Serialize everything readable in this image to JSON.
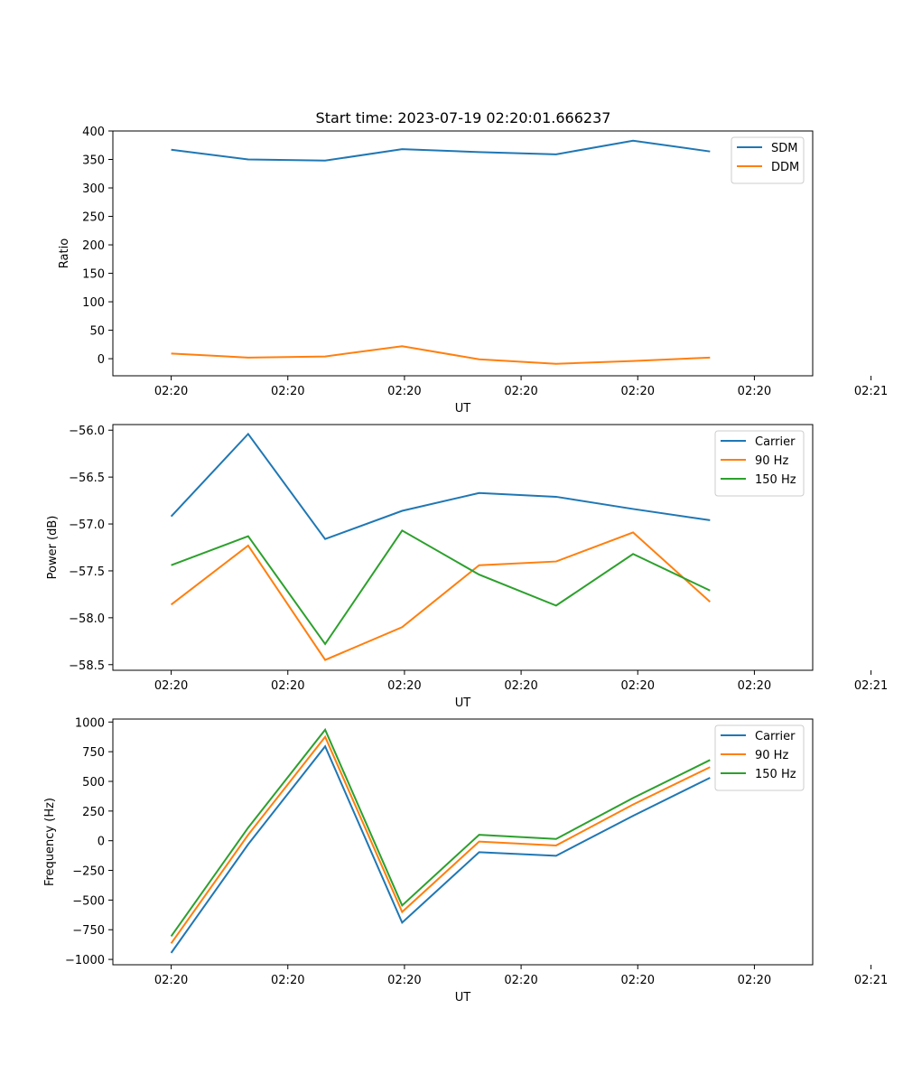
{
  "figure": {
    "title": "Start time: 2023-07-19 02:20:01.666237"
  },
  "colors": {
    "blue": "#1f77b4",
    "orange": "#ff7f0e",
    "green": "#2ca02c"
  },
  "chart_data": [
    {
      "type": "line",
      "title": "Start time: 2023-07-19 02:20:01.666237",
      "xlabel": "UT",
      "ylabel": "Ratio",
      "xlim": [
        -0.5,
        5.5
      ],
      "ylim": [
        -30,
        400
      ],
      "x": [
        0,
        0.66,
        1.32,
        1.98,
        2.64,
        3.3,
        3.96,
        4.62
      ],
      "xticks": [
        {
          "pos": 0,
          "label": "02:20"
        },
        {
          "pos": 1,
          "label": "02:20"
        },
        {
          "pos": 2,
          "label": "02:20"
        },
        {
          "pos": 3,
          "label": "02:20"
        },
        {
          "pos": 4,
          "label": "02:20"
        },
        {
          "pos": 5,
          "label": "02:20"
        },
        {
          "pos": 6,
          "label": "02:21"
        }
      ],
      "yticks": [
        {
          "pos": 0,
          "label": "0"
        },
        {
          "pos": 50,
          "label": "50"
        },
        {
          "pos": 100,
          "label": "100"
        },
        {
          "pos": 150,
          "label": "150"
        },
        {
          "pos": 200,
          "label": "200"
        },
        {
          "pos": 250,
          "label": "250"
        },
        {
          "pos": 300,
          "label": "300"
        },
        {
          "pos": 350,
          "label": "350"
        },
        {
          "pos": 400,
          "label": "400"
        }
      ],
      "legend_position": "top-right",
      "series": [
        {
          "name": "SDM",
          "color": "#1f77b4",
          "values": [
            367,
            350,
            348,
            368,
            363,
            359,
            383,
            364
          ]
        },
        {
          "name": "DDM",
          "color": "#ff7f0e",
          "values": [
            9,
            2,
            4,
            22,
            -1,
            -9,
            -4,
            2
          ]
        }
      ]
    },
    {
      "type": "line",
      "title": "",
      "xlabel": "UT",
      "ylabel": "Power (dB)",
      "xlim": [
        -0.5,
        5.5
      ],
      "ylim": [
        -58.56,
        -55.94
      ],
      "x": [
        0,
        0.66,
        1.32,
        1.98,
        2.64,
        3.3,
        3.96,
        4.62
      ],
      "xticks": [
        {
          "pos": 0,
          "label": "02:20"
        },
        {
          "pos": 1,
          "label": "02:20"
        },
        {
          "pos": 2,
          "label": "02:20"
        },
        {
          "pos": 3,
          "label": "02:20"
        },
        {
          "pos": 4,
          "label": "02:20"
        },
        {
          "pos": 5,
          "label": "02:20"
        },
        {
          "pos": 6,
          "label": "02:21"
        }
      ],
      "yticks": [
        {
          "pos": -56.0,
          "label": "−56.0"
        },
        {
          "pos": -56.5,
          "label": "−56.5"
        },
        {
          "pos": -57.0,
          "label": "−57.0"
        },
        {
          "pos": -57.5,
          "label": "−57.5"
        },
        {
          "pos": -58.0,
          "label": "−58.0"
        },
        {
          "pos": -58.5,
          "label": "−58.5"
        }
      ],
      "legend_position": "top-right",
      "series": [
        {
          "name": "Carrier",
          "color": "#1f77b4",
          "values": [
            -56.92,
            -56.04,
            -57.16,
            -56.86,
            -56.67,
            -56.71,
            -56.84,
            -56.96
          ]
        },
        {
          "name": "90 Hz",
          "color": "#ff7f0e",
          "values": [
            -57.86,
            -57.23,
            -58.45,
            -58.1,
            -57.44,
            -57.4,
            -57.09,
            -57.83
          ]
        },
        {
          "name": "150 Hz",
          "color": "#2ca02c",
          "values": [
            -57.44,
            -57.13,
            -58.28,
            -57.07,
            -57.54,
            -57.87,
            -57.32,
            -57.71
          ]
        }
      ]
    },
    {
      "type": "line",
      "title": "",
      "xlabel": "UT",
      "ylabel": "Frequency (Hz)",
      "xlim": [
        -0.5,
        5.5
      ],
      "ylim": [
        -1045,
        1025
      ],
      "x": [
        0,
        0.66,
        1.32,
        1.98,
        2.64,
        3.3,
        3.96,
        4.62
      ],
      "xticks": [
        {
          "pos": 0,
          "label": "02:20"
        },
        {
          "pos": 1,
          "label": "02:20"
        },
        {
          "pos": 2,
          "label": "02:20"
        },
        {
          "pos": 3,
          "label": "02:20"
        },
        {
          "pos": 4,
          "label": "02:20"
        },
        {
          "pos": 5,
          "label": "02:20"
        },
        {
          "pos": 6,
          "label": "02:21"
        }
      ],
      "yticks": [
        {
          "pos": 1000,
          "label": "1000"
        },
        {
          "pos": 750,
          "label": "750"
        },
        {
          "pos": 500,
          "label": "500"
        },
        {
          "pos": 250,
          "label": "250"
        },
        {
          "pos": 0,
          "label": "0"
        },
        {
          "pos": -250,
          "label": "−250"
        },
        {
          "pos": -500,
          "label": "−500"
        },
        {
          "pos": -750,
          "label": "−750"
        },
        {
          "pos": -1000,
          "label": "−1000"
        }
      ],
      "legend_position": "top-right",
      "series": [
        {
          "name": "Carrier",
          "color": "#1f77b4",
          "values": [
            -945,
            -30,
            795,
            -690,
            -97,
            -127,
            210,
            530
          ]
        },
        {
          "name": "90 Hz",
          "color": "#ff7f0e",
          "values": [
            -865,
            50,
            875,
            -600,
            -7,
            -40,
            305,
            620
          ]
        },
        {
          "name": "150 Hz",
          "color": "#2ca02c",
          "values": [
            -805,
            110,
            935,
            -545,
            50,
            15,
            360,
            680
          ]
        }
      ]
    }
  ]
}
